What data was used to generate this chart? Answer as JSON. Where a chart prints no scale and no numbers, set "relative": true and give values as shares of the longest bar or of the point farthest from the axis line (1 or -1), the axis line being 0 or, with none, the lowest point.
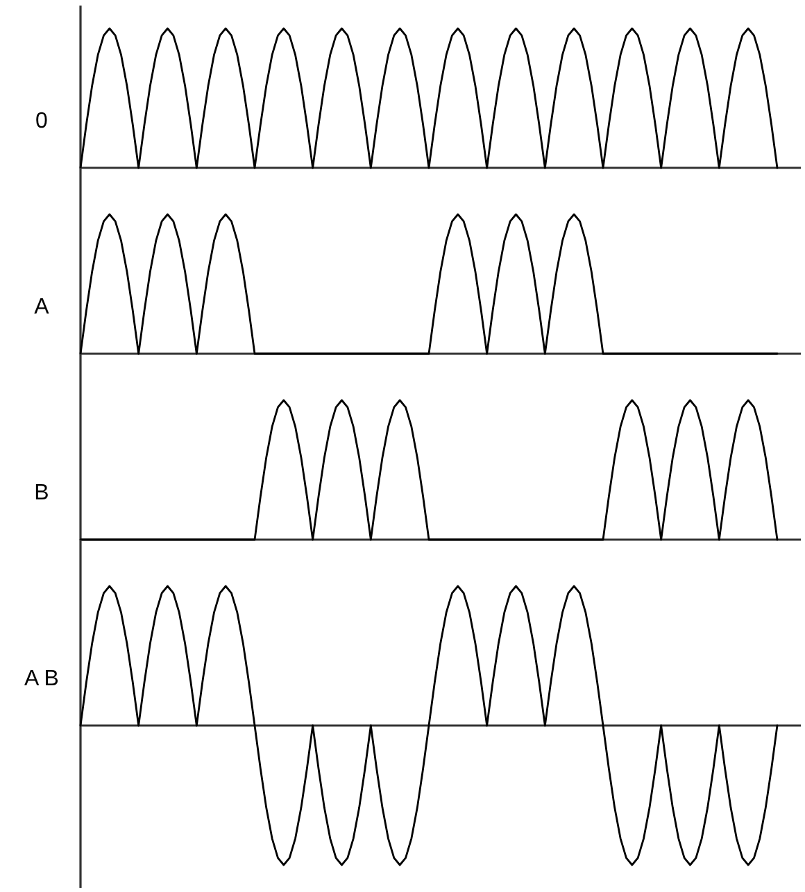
{
  "chart_data": [
    {
      "type": "line",
      "relative": true,
      "ylabel": "0",
      "color": "#000000",
      "categories": [
        null,
        null,
        null,
        null,
        null,
        null,
        null,
        null,
        null,
        null,
        null,
        null,
        null,
        null,
        null,
        null,
        null,
        null,
        null,
        null,
        null,
        null,
        null,
        null,
        null,
        null,
        null,
        null,
        null,
        null,
        null,
        null,
        null,
        null,
        null,
        null,
        null,
        null,
        null,
        null,
        null,
        null,
        null,
        null,
        null,
        null,
        null,
        null,
        null,
        null,
        null,
        null,
        null,
        null,
        null,
        null,
        null,
        null,
        null,
        null,
        null,
        null,
        null,
        null,
        null,
        null,
        null,
        null,
        null,
        null,
        null,
        null,
        null,
        null,
        null,
        null,
        null,
        null,
        null,
        null,
        null,
        null,
        null,
        null,
        null,
        null,
        null,
        null,
        null,
        null,
        null,
        null,
        null,
        null,
        null,
        null,
        null,
        null,
        null,
        null,
        null,
        null,
        null,
        null,
        null,
        null,
        null,
        null,
        null,
        null,
        null,
        null,
        null,
        null,
        null,
        null,
        null,
        null,
        null,
        null,
        null
      ],
      "values": [
        0,
        0.31,
        0.59,
        0.81,
        0.95,
        1,
        0.95,
        0.81,
        0.59,
        0.31,
        0,
        0.31,
        0.59,
        0.81,
        0.95,
        1,
        0.95,
        0.81,
        0.59,
        0.31,
        0,
        0.31,
        0.59,
        0.81,
        0.95,
        1,
        0.95,
        0.81,
        0.59,
        0.31,
        0,
        0.31,
        0.59,
        0.81,
        0.95,
        1,
        0.95,
        0.81,
        0.59,
        0.31,
        0,
        0.31,
        0.59,
        0.81,
        0.95,
        1,
        0.95,
        0.81,
        0.59,
        0.31,
        0,
        0.31,
        0.59,
        0.81,
        0.95,
        1,
        0.95,
        0.81,
        0.59,
        0.31,
        0,
        0.31,
        0.59,
        0.81,
        0.95,
        1,
        0.95,
        0.81,
        0.59,
        0.31,
        0,
        0.31,
        0.59,
        0.81,
        0.95,
        1,
        0.95,
        0.81,
        0.59,
        0.31,
        0,
        0.31,
        0.59,
        0.81,
        0.95,
        1,
        0.95,
        0.81,
        0.59,
        0.31,
        0,
        0.31,
        0.59,
        0.81,
        0.95,
        1,
        0.95,
        0.81,
        0.59,
        0.31,
        0,
        0.31,
        0.59,
        0.81,
        0.95,
        1,
        0.95,
        0.81,
        0.59,
        0.31,
        0,
        0.31,
        0.59,
        0.81,
        0.95,
        1,
        0.95,
        0.81,
        0.59,
        0.31,
        0
      ]
    },
    {
      "type": "line",
      "relative": true,
      "ylabel": "A",
      "color": "#000000",
      "categories": [
        null,
        null,
        null,
        null,
        null,
        null,
        null,
        null,
        null,
        null,
        null,
        null,
        null,
        null,
        null,
        null,
        null,
        null,
        null,
        null,
        null,
        null,
        null,
        null,
        null,
        null,
        null,
        null,
        null,
        null,
        null,
        null,
        null,
        null,
        null,
        null,
        null,
        null,
        null,
        null,
        null,
        null,
        null,
        null,
        null,
        null,
        null,
        null,
        null,
        null,
        null,
        null,
        null,
        null,
        null,
        null,
        null,
        null,
        null,
        null,
        null,
        null,
        null,
        null,
        null,
        null,
        null,
        null,
        null,
        null,
        null,
        null,
        null,
        null,
        null,
        null,
        null,
        null,
        null,
        null,
        null,
        null,
        null,
        null,
        null,
        null,
        null,
        null,
        null,
        null,
        null,
        null,
        null,
        null,
        null,
        null,
        null,
        null,
        null,
        null,
        null,
        null,
        null,
        null,
        null,
        null,
        null,
        null,
        null,
        null,
        null,
        null,
        null,
        null,
        null,
        null,
        null,
        null,
        null,
        null,
        null
      ],
      "values": [
        0,
        0.31,
        0.59,
        0.81,
        0.95,
        1,
        0.95,
        0.81,
        0.59,
        0.31,
        0,
        0.31,
        0.59,
        0.81,
        0.95,
        1,
        0.95,
        0.81,
        0.59,
        0.31,
        0,
        0.31,
        0.59,
        0.81,
        0.95,
        1,
        0.95,
        0.81,
        0.59,
        0.31,
        0,
        0,
        0,
        0,
        0,
        0,
        0,
        0,
        0,
        0,
        0,
        0,
        0,
        0,
        0,
        0,
        0,
        0,
        0,
        0,
        0,
        0,
        0,
        0,
        0,
        0,
        0,
        0,
        0,
        0,
        0,
        0.31,
        0.59,
        0.81,
        0.95,
        1,
        0.95,
        0.81,
        0.59,
        0.31,
        0,
        0.31,
        0.59,
        0.81,
        0.95,
        1,
        0.95,
        0.81,
        0.59,
        0.31,
        0,
        0.31,
        0.59,
        0.81,
        0.95,
        1,
        0.95,
        0.81,
        0.59,
        0.31,
        0,
        0,
        0,
        0,
        0,
        0,
        0,
        0,
        0,
        0,
        0,
        0,
        0,
        0,
        0,
        0,
        0,
        0,
        0,
        0,
        0,
        0,
        0,
        0,
        0,
        0,
        0,
        0,
        0,
        0,
        0
      ]
    },
    {
      "type": "line",
      "relative": true,
      "ylabel": "B",
      "color": "#000000",
      "categories": [
        null,
        null,
        null,
        null,
        null,
        null,
        null,
        null,
        null,
        null,
        null,
        null,
        null,
        null,
        null,
        null,
        null,
        null,
        null,
        null,
        null,
        null,
        null,
        null,
        null,
        null,
        null,
        null,
        null,
        null,
        null,
        null,
        null,
        null,
        null,
        null,
        null,
        null,
        null,
        null,
        null,
        null,
        null,
        null,
        null,
        null,
        null,
        null,
        null,
        null,
        null,
        null,
        null,
        null,
        null,
        null,
        null,
        null,
        null,
        null,
        null,
        null,
        null,
        null,
        null,
        null,
        null,
        null,
        null,
        null,
        null,
        null,
        null,
        null,
        null,
        null,
        null,
        null,
        null,
        null,
        null,
        null,
        null,
        null,
        null,
        null,
        null,
        null,
        null,
        null,
        null,
        null,
        null,
        null,
        null,
        null,
        null,
        null,
        null,
        null,
        null,
        null,
        null,
        null,
        null,
        null,
        null,
        null,
        null,
        null,
        null,
        null,
        null,
        null,
        null,
        null,
        null,
        null,
        null,
        null,
        null
      ],
      "values": [
        0,
        0,
        0,
        0,
        0,
        0,
        0,
        0,
        0,
        0,
        0,
        0,
        0,
        0,
        0,
        0,
        0,
        0,
        0,
        0,
        0,
        0,
        0,
        0,
        0,
        0,
        0,
        0,
        0,
        0,
        0,
        0.31,
        0.59,
        0.81,
        0.95,
        1,
        0.95,
        0.81,
        0.59,
        0.31,
        0,
        0.31,
        0.59,
        0.81,
        0.95,
        1,
        0.95,
        0.81,
        0.59,
        0.31,
        0,
        0.31,
        0.59,
        0.81,
        0.95,
        1,
        0.95,
        0.81,
        0.59,
        0.31,
        0,
        0,
        0,
        0,
        0,
        0,
        0,
        0,
        0,
        0,
        0,
        0,
        0,
        0,
        0,
        0,
        0,
        0,
        0,
        0,
        0,
        0,
        0,
        0,
        0,
        0,
        0,
        0,
        0,
        0,
        0,
        0.31,
        0.59,
        0.81,
        0.95,
        1,
        0.95,
        0.81,
        0.59,
        0.31,
        0,
        0.31,
        0.59,
        0.81,
        0.95,
        1,
        0.95,
        0.81,
        0.59,
        0.31,
        0,
        0.31,
        0.59,
        0.81,
        0.95,
        1,
        0.95,
        0.81,
        0.59,
        0.31,
        0
      ]
    },
    {
      "type": "line",
      "relative": true,
      "ylabel": "A B",
      "color": "#000000",
      "categories": [
        null,
        null,
        null,
        null,
        null,
        null,
        null,
        null,
        null,
        null,
        null,
        null,
        null,
        null,
        null,
        null,
        null,
        null,
        null,
        null,
        null,
        null,
        null,
        null,
        null,
        null,
        null,
        null,
        null,
        null,
        null,
        null,
        null,
        null,
        null,
        null,
        null,
        null,
        null,
        null,
        null,
        null,
        null,
        null,
        null,
        null,
        null,
        null,
        null,
        null,
        null,
        null,
        null,
        null,
        null,
        null,
        null,
        null,
        null,
        null,
        null,
        null,
        null,
        null,
        null,
        null,
        null,
        null,
        null,
        null,
        null,
        null,
        null,
        null,
        null,
        null,
        null,
        null,
        null,
        null,
        null,
        null,
        null,
        null,
        null,
        null,
        null,
        null,
        null,
        null,
        null,
        null,
        null,
        null,
        null,
        null,
        null,
        null,
        null,
        null,
        null,
        null,
        null,
        null,
        null,
        null,
        null,
        null,
        null,
        null,
        null,
        null,
        null,
        null,
        null,
        null,
        null,
        null,
        null,
        null,
        null
      ],
      "values": [
        0,
        0.31,
        0.59,
        0.81,
        0.95,
        1,
        0.95,
        0.81,
        0.59,
        0.31,
        0,
        0.31,
        0.59,
        0.81,
        0.95,
        1,
        0.95,
        0.81,
        0.59,
        0.31,
        0,
        0.31,
        0.59,
        0.81,
        0.95,
        1,
        0.95,
        0.81,
        0.59,
        0.31,
        0,
        -0.31,
        -0.59,
        -0.81,
        -0.95,
        -1,
        -0.95,
        -0.81,
        -0.59,
        -0.31,
        0,
        -0.31,
        -0.59,
        -0.81,
        -0.95,
        -1,
        -0.95,
        -0.81,
        -0.59,
        -0.31,
        0,
        -0.31,
        -0.59,
        -0.81,
        -0.95,
        -1,
        -0.95,
        -0.81,
        -0.59,
        -0.31,
        0,
        0.31,
        0.59,
        0.81,
        0.95,
        1,
        0.95,
        0.81,
        0.59,
        0.31,
        0,
        0.31,
        0.59,
        0.81,
        0.95,
        1,
        0.95,
        0.81,
        0.59,
        0.31,
        0,
        0.31,
        0.59,
        0.81,
        0.95,
        1,
        0.95,
        0.81,
        0.59,
        0.31,
        0,
        -0.31,
        -0.59,
        -0.81,
        -0.95,
        -1,
        -0.95,
        -0.81,
        -0.59,
        -0.31,
        0,
        -0.31,
        -0.59,
        -0.81,
        -0.95,
        -1,
        -0.95,
        -0.81,
        -0.59,
        -0.31,
        0,
        -0.31,
        -0.59,
        -0.81,
        -0.95,
        -1,
        -0.95,
        -0.81,
        -0.59,
        -0.31,
        0
      ]
    }
  ]
}
